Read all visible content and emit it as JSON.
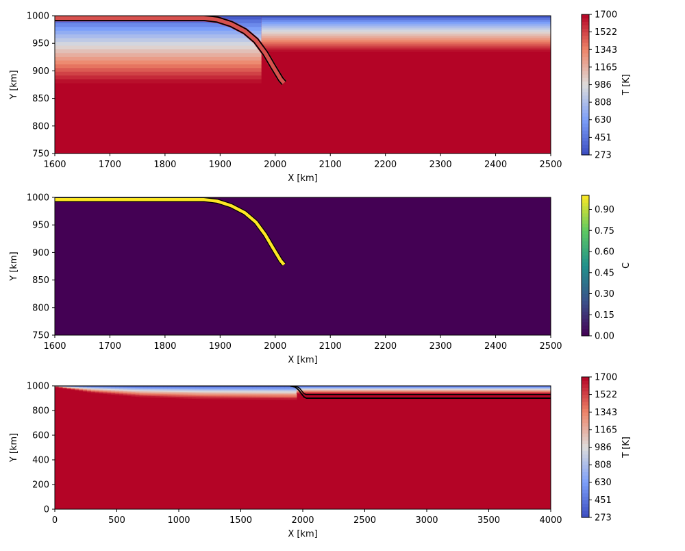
{
  "chart_data": [
    {
      "type": "heatmap",
      "field": "temperature",
      "xlabel": "X [km]",
      "ylabel": "Y [km]",
      "xlim": [
        1600,
        2500
      ],
      "ylim": [
        750,
        1000
      ],
      "xticks": [
        "1600",
        "1700",
        "1800",
        "1900",
        "2000",
        "2100",
        "2200",
        "2300",
        "2400",
        "2500"
      ],
      "yticks": [
        "750",
        "800",
        "850",
        "900",
        "950",
        "1000"
      ],
      "colormap": "coolwarm",
      "colorbar": {
        "label": "T [K]",
        "range": [
          273,
          1700
        ],
        "ticks": [
          "273",
          "451",
          "630",
          "808",
          "986",
          "1165",
          "1343",
          "1522",
          "1700"
        ]
      },
      "surface_temperature": 273,
      "mantle_temperature": 1700,
      "left_plate_base_depth_km": 122,
      "right_plate_base_depth_km": 65,
      "slab_path": [
        [
          1600,
          996
        ],
        [
          1870,
          996
        ],
        [
          1895,
          993
        ],
        [
          1920,
          985
        ],
        [
          1945,
          972
        ],
        [
          1965,
          955
        ],
        [
          1982,
          932
        ],
        [
          1996,
          908
        ],
        [
          2010,
          885
        ],
        [
          2016,
          878
        ]
      ],
      "grid": false
    },
    {
      "type": "heatmap",
      "field": "composition",
      "xlabel": "X [km]",
      "ylabel": "Y [km]",
      "xlim": [
        1600,
        2500
      ],
      "ylim": [
        750,
        1000
      ],
      "xticks": [
        "1600",
        "1700",
        "1800",
        "1900",
        "2000",
        "2100",
        "2200",
        "2300",
        "2400",
        "2500"
      ],
      "yticks": [
        "750",
        "800",
        "850",
        "900",
        "950",
        "1000"
      ],
      "colormap": "viridis",
      "colorbar": {
        "label": "C",
        "range": [
          0,
          1
        ],
        "ticks": [
          "0.00",
          "0.15",
          "0.30",
          "0.45",
          "0.60",
          "0.75",
          "0.90"
        ]
      },
      "background_value": 0,
      "layer_value": 1,
      "layer_path": [
        [
          1600,
          996
        ],
        [
          1870,
          996
        ],
        [
          1895,
          993
        ],
        [
          1920,
          985
        ],
        [
          1945,
          972
        ],
        [
          1965,
          955
        ],
        [
          1982,
          932
        ],
        [
          1996,
          908
        ],
        [
          2010,
          885
        ],
        [
          2016,
          878
        ]
      ],
      "grid": false
    },
    {
      "type": "heatmap",
      "field": "temperature",
      "xlabel": "X [km]",
      "ylabel": "Y [km]",
      "xlim": [
        0,
        4000
      ],
      "ylim": [
        0,
        1000
      ],
      "xticks": [
        "0",
        "500",
        "1000",
        "1500",
        "2000",
        "2500",
        "3000",
        "3500",
        "4000"
      ],
      "yticks": [
        "0",
        "200",
        "400",
        "600",
        "800",
        "1000"
      ],
      "colormap": "coolwarm",
      "colorbar": {
        "label": "T [K]",
        "range": [
          273,
          1700
        ],
        "ticks": [
          "273",
          "451",
          "630",
          "808",
          "986",
          "1165",
          "1343",
          "1522",
          "1700"
        ]
      },
      "surface_temperature": 273,
      "mantle_temperature": 1700,
      "left_plate_thickness_profile_km": [
        [
          0,
          8
        ],
        [
          300,
          55
        ],
        [
          700,
          90
        ],
        [
          1200,
          105
        ],
        [
          1900,
          112
        ]
      ],
      "right_plate_base_depth_km": 65,
      "boundary_path": [
        [
          0,
          1000
        ],
        [
          1910,
          1000
        ],
        [
          1950,
          995
        ],
        [
          1975,
          980
        ],
        [
          1995,
          955
        ],
        [
          2010,
          938
        ],
        [
          2025,
          930
        ],
        [
          4000,
          930
        ]
      ],
      "slab_path": [
        [
          1900,
          998
        ],
        [
          1940,
          990
        ],
        [
          1968,
          965
        ],
        [
          1990,
          935
        ],
        [
          2010,
          910
        ],
        [
          2030,
          900
        ],
        [
          4000,
          900
        ]
      ],
      "grid": false
    }
  ]
}
